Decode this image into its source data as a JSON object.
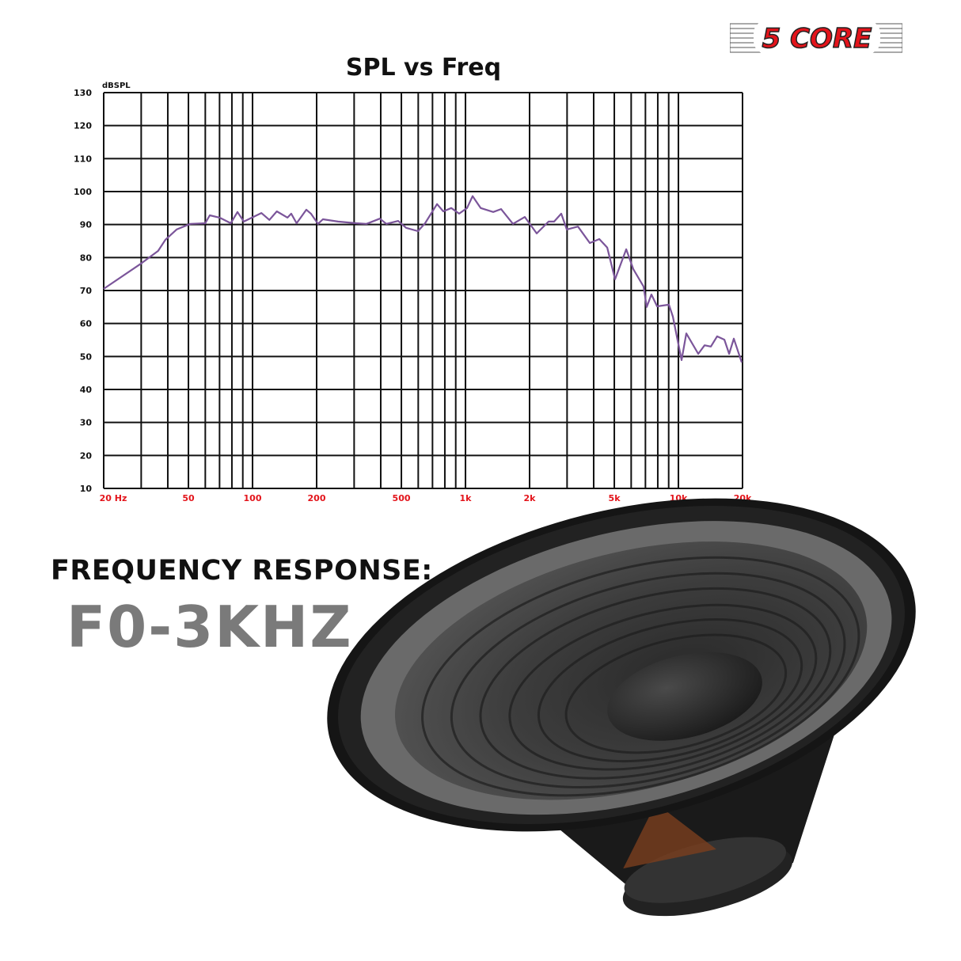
{
  "brand": {
    "logo_text": "5 CORE",
    "color": "#e3141b"
  },
  "chart_data": {
    "type": "line",
    "title": "SPL vs Freq",
    "ylabel": "dBSPL",
    "xlabel": "",
    "xscale": "log",
    "xlim": [
      20,
      20000
    ],
    "ylim": [
      10,
      130
    ],
    "grid": true,
    "y_ticks": [
      "130",
      "120",
      "110",
      "100",
      "90",
      "80",
      "70",
      "60",
      "50",
      "40",
      "30",
      "20",
      "10"
    ],
    "x_ticks": [
      {
        "value": 20,
        "label": "20 Hz"
      },
      {
        "value": 50,
        "label": "50"
      },
      {
        "value": 100,
        "label": "100"
      },
      {
        "value": 200,
        "label": "200"
      },
      {
        "value": 500,
        "label": "500"
      },
      {
        "value": 1000,
        "label": "1k"
      },
      {
        "value": 2000,
        "label": "2k"
      },
      {
        "value": 5000,
        "label": "5k"
      },
      {
        "value": 10000,
        "label": "10k"
      },
      {
        "value": 20000,
        "label": "20k"
      }
    ],
    "x_tick_color": "#e3141b",
    "line_color": "#7b559a",
    "series": [
      {
        "x": [
          20,
          30,
          36,
          39,
          44,
          51,
          60,
          63,
          70,
          79,
          85,
          91,
          110,
          120,
          130,
          146,
          152,
          161,
          179,
          188,
          203,
          214,
          252,
          307,
          343,
          396,
          425,
          483,
          526,
          598,
          646,
          735,
          787,
          858,
          934,
          1017,
          1080,
          1178,
          1350,
          1470,
          1671,
          1900,
          2160,
          2456,
          2607,
          2816,
          2990,
          3374,
          3835,
          4250,
          4630,
          5040,
          5690,
          6140,
          6860,
          7100,
          7470,
          7940,
          9020,
          9420,
          10350,
          10890,
          12390,
          13270,
          14200,
          15200,
          16440,
          17300,
          18200,
          19830
        ],
        "y": [
          70.5,
          78.2,
          82,
          85.4,
          88.5,
          90.2,
          90.4,
          92.8,
          92.1,
          90.4,
          93.8,
          90.9,
          93.5,
          91.4,
          94,
          92.1,
          93.3,
          90.4,
          94.5,
          93.3,
          90.2,
          91.6,
          90.9,
          90.4,
          90.2,
          91.8,
          90.2,
          91.1,
          89,
          88,
          90.4,
          96.2,
          94,
          95,
          93.3,
          95,
          98.6,
          95,
          93.8,
          94.7,
          90.2,
          92.3,
          87.3,
          90.9,
          90.9,
          93.3,
          88.5,
          89.4,
          84.4,
          85.6,
          83,
          73.4,
          82.5,
          76.5,
          71.2,
          65,
          68.8,
          65.2,
          65.7,
          62.1,
          48.9,
          57,
          50.8,
          53.4,
          53,
          56.1,
          55.1,
          50.8,
          55.4,
          48.2
        ]
      }
    ]
  },
  "feature": {
    "label": "FREQUENCY RESPONSE:",
    "value": "F0-3KHZ"
  }
}
